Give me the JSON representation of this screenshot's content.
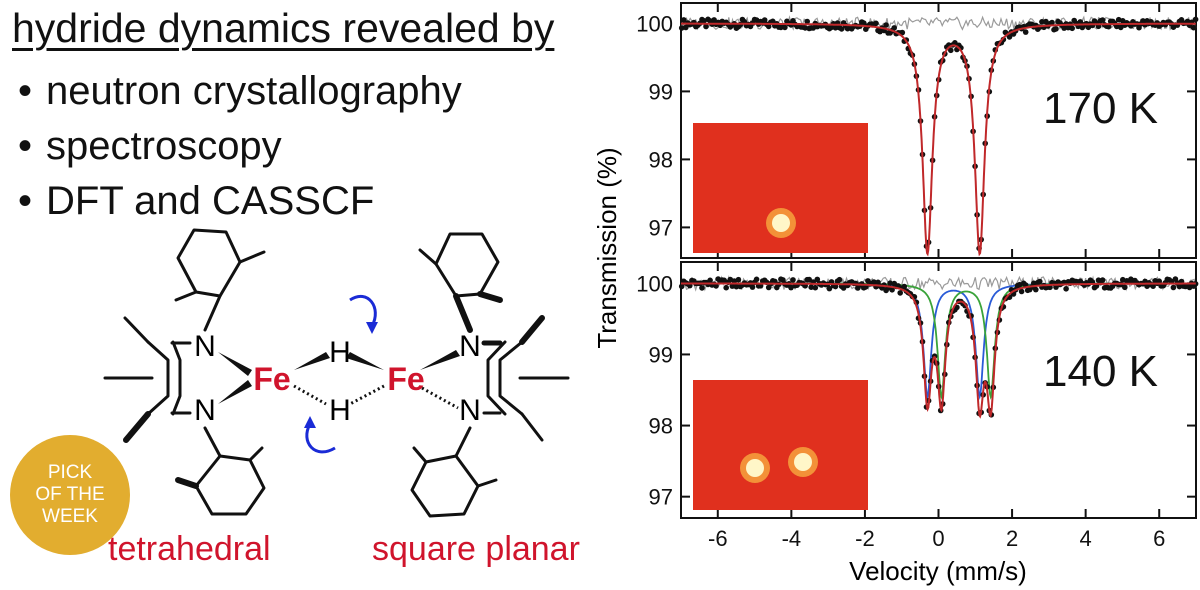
{
  "headline": "hydride dynamics revealed by",
  "bullets": [
    "neutron crystallography",
    "spectroscopy",
    "DFT and CASSCF"
  ],
  "badge": {
    "line1": "PICK",
    "line2": "OF THE",
    "line3": "WEEK",
    "color": "#e2ad2f"
  },
  "molecule": {
    "fe_label": "Fe",
    "h_label": "H",
    "n_label": "N"
  },
  "geometry_labels": {
    "left": "tetrahedral",
    "right": "square planar",
    "color": "#d0142c"
  },
  "colors": {
    "fit": "#c0282a",
    "data": "#111111",
    "residual": "#9a9a9a",
    "site_a": "#2a5bd7",
    "site_b": "#3aa33a",
    "inset_bg": "#e0301e",
    "spot": "#fff6c8",
    "arrow": "#1a2bd6"
  },
  "chart_data": {
    "type": "scatter",
    "xlabel": "Velocity (mm/s)",
    "ylabel": "Transmission (%)",
    "xlim": [
      -7,
      7
    ],
    "xticks": [
      -6,
      -4,
      -2,
      0,
      2,
      4,
      6
    ],
    "panels": [
      {
        "annotation": "170 K",
        "ylim": [
          96.55,
          100.3
        ],
        "yticks": [
          97,
          98,
          99,
          100
        ],
        "inset_spots": 1,
        "series": [
          {
            "kind": "fit",
            "baseline": 100.0,
            "lines": [
              {
                "center": -0.3,
                "depth": 3.35,
                "width": 0.16
              },
              {
                "center": 1.12,
                "depth": 3.35,
                "width": 0.16
              }
            ]
          }
        ]
      },
      {
        "annotation": "140 K",
        "ylim": [
          96.7,
          100.3
        ],
        "yticks": [
          97,
          98,
          99,
          100
        ],
        "inset_spots": 2,
        "series": [
          {
            "kind": "site_a",
            "baseline": 100.0,
            "lines": [
              {
                "center": -0.3,
                "depth": 1.58,
                "width": 0.13
              },
              {
                "center": 1.12,
                "depth": 1.58,
                "width": 0.13
              }
            ]
          },
          {
            "kind": "site_b",
            "baseline": 100.0,
            "lines": [
              {
                "center": 0.08,
                "depth": 1.58,
                "width": 0.13
              },
              {
                "center": 1.42,
                "depth": 1.58,
                "width": 0.13
              }
            ]
          }
        ]
      }
    ]
  }
}
